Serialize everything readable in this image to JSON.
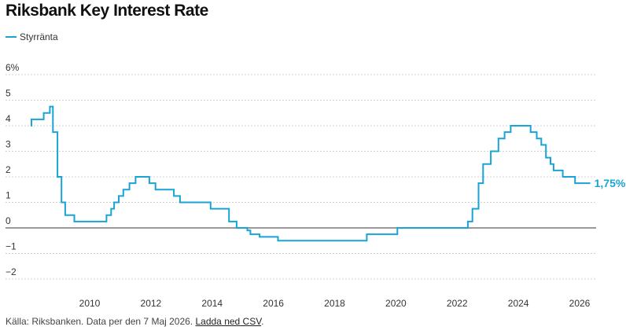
{
  "header": {
    "title": "Riksbank Key Interest Rate"
  },
  "footer": {
    "source": "Källa: Riksbanken. Data per den 7 Maj 2026. ",
    "link": "Ladda ned CSV",
    "end": "."
  },
  "colors": {
    "line": "#1aa3d6",
    "grid": "#d0d0d0",
    "zero": "#333333"
  },
  "chart_data": {
    "type": "line",
    "title": "Riksbank Key Interest Rate",
    "xlabel": "",
    "ylabel": "",
    "xlim": [
      2008.0,
      2026.6
    ],
    "ylim": [
      -2,
      6
    ],
    "y_ticks": [
      -2,
      -1,
      0,
      1,
      2,
      3,
      4,
      5,
      6
    ],
    "y_tick_labels": [
      "−2",
      "−1",
      "0",
      "1",
      "2",
      "3",
      "4",
      "5",
      "6%"
    ],
    "x_ticks": [
      2010,
      2012,
      2014,
      2016,
      2018,
      2020,
      2022,
      2024,
      2026
    ],
    "x_tick_labels": [
      "2010",
      "2012",
      "2014",
      "2016",
      "2018",
      "2020",
      "2022",
      "2024",
      "2026"
    ],
    "legend": {
      "position": "top-left",
      "entries": [
        "Styrränta"
      ]
    },
    "end_label": "1,75%",
    "series": [
      {
        "name": "Styrränta",
        "step": true,
        "points": [
          [
            2008.08,
            4.0
          ],
          [
            2008.1,
            4.25
          ],
          [
            2008.5,
            4.5
          ],
          [
            2008.7,
            4.75
          ],
          [
            2008.8,
            3.75
          ],
          [
            2008.95,
            2.0
          ],
          [
            2009.08,
            1.0
          ],
          [
            2009.2,
            0.5
          ],
          [
            2009.5,
            0.25
          ],
          [
            2010.55,
            0.5
          ],
          [
            2010.7,
            0.75
          ],
          [
            2010.8,
            1.0
          ],
          [
            2010.95,
            1.25
          ],
          [
            2011.1,
            1.5
          ],
          [
            2011.3,
            1.75
          ],
          [
            2011.5,
            2.0
          ],
          [
            2011.95,
            1.75
          ],
          [
            2012.15,
            1.5
          ],
          [
            2012.75,
            1.25
          ],
          [
            2012.95,
            1.0
          ],
          [
            2013.95,
            0.75
          ],
          [
            2014.55,
            0.25
          ],
          [
            2014.8,
            0.0
          ],
          [
            2015.15,
            -0.1
          ],
          [
            2015.25,
            -0.25
          ],
          [
            2015.55,
            -0.35
          ],
          [
            2016.15,
            -0.5
          ],
          [
            2019.05,
            -0.25
          ],
          [
            2020.05,
            0.0
          ],
          [
            2022.35,
            0.25
          ],
          [
            2022.5,
            0.75
          ],
          [
            2022.7,
            1.75
          ],
          [
            2022.85,
            2.5
          ],
          [
            2023.1,
            3.0
          ],
          [
            2023.35,
            3.5
          ],
          [
            2023.55,
            3.75
          ],
          [
            2023.75,
            4.0
          ],
          [
            2024.4,
            3.75
          ],
          [
            2024.6,
            3.5
          ],
          [
            2024.75,
            3.25
          ],
          [
            2024.9,
            2.75
          ],
          [
            2025.05,
            2.5
          ],
          [
            2025.15,
            2.25
          ],
          [
            2025.45,
            2.0
          ],
          [
            2025.85,
            1.75
          ],
          [
            2026.35,
            1.75
          ]
        ]
      }
    ]
  }
}
